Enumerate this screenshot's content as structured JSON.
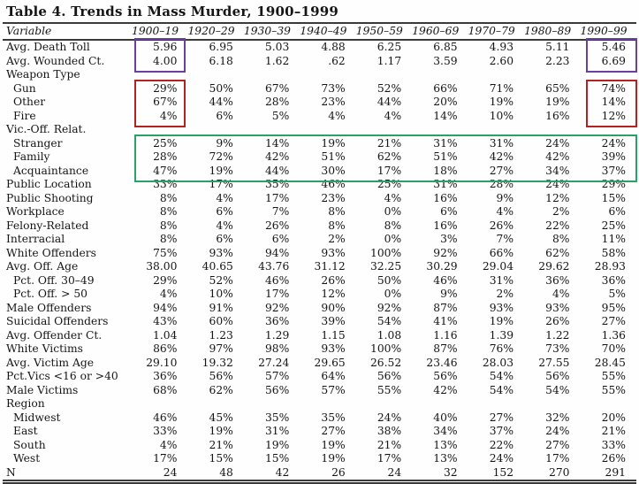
{
  "title": "Table 4. Trends in Mass Murder, 1900–1999",
  "table": {
    "variable_header": "Variable",
    "columns": [
      "1900–19",
      "1920–29",
      "1930–39",
      "1940–49",
      "1950–59",
      "1960–69",
      "1970–79",
      "1980–89",
      "1990–99"
    ],
    "rows": [
      {
        "label": "Avg. Death Toll",
        "indent": 0,
        "values": [
          "5.96",
          "6.95",
          "5.03",
          "4.88",
          "6.25",
          "6.85",
          "4.93",
          "5.11",
          "5.46"
        ]
      },
      {
        "label": "Avg. Wounded Ct.",
        "indent": 0,
        "values": [
          "4.00",
          "6.18",
          "1.62",
          ".62",
          "1.17",
          "3.59",
          "2.60",
          "2.23",
          "6.69"
        ]
      },
      {
        "label": "Weapon Type",
        "indent": 0,
        "group": true,
        "values": []
      },
      {
        "label": "Gun",
        "indent": 1,
        "values": [
          "29%",
          "50%",
          "67%",
          "73%",
          "52%",
          "66%",
          "71%",
          "65%",
          "74%"
        ]
      },
      {
        "label": "Other",
        "indent": 1,
        "values": [
          "67%",
          "44%",
          "28%",
          "23%",
          "44%",
          "20%",
          "19%",
          "19%",
          "14%"
        ]
      },
      {
        "label": "Fire",
        "indent": 1,
        "values": [
          "4%",
          "6%",
          "5%",
          "4%",
          "4%",
          "14%",
          "10%",
          "16%",
          "12%"
        ]
      },
      {
        "label": "Vic.-Off. Relat.",
        "indent": 0,
        "group": true,
        "values": []
      },
      {
        "label": "Stranger",
        "indent": 1,
        "values": [
          "25%",
          "9%",
          "14%",
          "19%",
          "21%",
          "31%",
          "31%",
          "24%",
          "24%"
        ]
      },
      {
        "label": "Family",
        "indent": 1,
        "values": [
          "28%",
          "72%",
          "42%",
          "51%",
          "62%",
          "51%",
          "42%",
          "42%",
          "39%"
        ]
      },
      {
        "label": "Acquaintance",
        "indent": 1,
        "values": [
          "47%",
          "19%",
          "44%",
          "30%",
          "17%",
          "18%",
          "27%",
          "34%",
          "37%"
        ]
      },
      {
        "label": "Public Location",
        "indent": 0,
        "values": [
          "33%",
          "17%",
          "35%",
          "46%",
          "25%",
          "31%",
          "28%",
          "24%",
          "29%"
        ]
      },
      {
        "label": "Public Shooting",
        "indent": 0,
        "values": [
          "8%",
          "4%",
          "17%",
          "23%",
          "4%",
          "16%",
          "9%",
          "12%",
          "15%"
        ]
      },
      {
        "label": "Workplace",
        "indent": 0,
        "values": [
          "8%",
          "6%",
          "7%",
          "8%",
          "0%",
          "6%",
          "4%",
          "2%",
          "6%"
        ]
      },
      {
        "label": "Felony-Related",
        "indent": 0,
        "values": [
          "8%",
          "4%",
          "26%",
          "8%",
          "8%",
          "16%",
          "26%",
          "22%",
          "25%"
        ]
      },
      {
        "label": "Interracial",
        "indent": 0,
        "values": [
          "8%",
          "6%",
          "6%",
          "2%",
          "0%",
          "3%",
          "7%",
          "8%",
          "11%"
        ]
      },
      {
        "label": "White Offenders",
        "indent": 0,
        "values": [
          "75%",
          "93%",
          "94%",
          "93%",
          "100%",
          "92%",
          "66%",
          "62%",
          "58%"
        ]
      },
      {
        "label": "Avg. Off. Age",
        "indent": 0,
        "values": [
          "38.00",
          "40.65",
          "43.76",
          "31.12",
          "32.25",
          "30.29",
          "29.04",
          "29.62",
          "28.93"
        ]
      },
      {
        "label": "Pct. Off. 30–49",
        "indent": 1,
        "values": [
          "29%",
          "52%",
          "46%",
          "26%",
          "50%",
          "46%",
          "31%",
          "36%",
          "36%"
        ]
      },
      {
        "label": "Pct. Off. > 50",
        "indent": 1,
        "values": [
          "4%",
          "10%",
          "17%",
          "12%",
          "0%",
          "9%",
          "2%",
          "4%",
          "5%"
        ]
      },
      {
        "label": "Male Offenders",
        "indent": 0,
        "values": [
          "94%",
          "91%",
          "92%",
          "90%",
          "92%",
          "87%",
          "93%",
          "93%",
          "95%"
        ]
      },
      {
        "label": "Suicidal Offenders",
        "indent": 0,
        "values": [
          "43%",
          "60%",
          "36%",
          "39%",
          "54%",
          "41%",
          "19%",
          "26%",
          "27%"
        ]
      },
      {
        "label": "Avg. Offender Ct.",
        "indent": 0,
        "values": [
          "1.04",
          "1.23",
          "1.29",
          "1.15",
          "1.08",
          "1.16",
          "1.39",
          "1.22",
          "1.36"
        ]
      },
      {
        "label": "White Victims",
        "indent": 0,
        "values": [
          "86%",
          "97%",
          "98%",
          "93%",
          "100%",
          "87%",
          "76%",
          "73%",
          "70%"
        ]
      },
      {
        "label": "Avg. Victim Age",
        "indent": 0,
        "values": [
          "29.10",
          "19.32",
          "27.24",
          "29.65",
          "26.52",
          "23.46",
          "28.03",
          "27.55",
          "28.45"
        ]
      },
      {
        "label": "Pct.Vics <16 or >40",
        "indent": 0,
        "values": [
          "36%",
          "56%",
          "57%",
          "64%",
          "56%",
          "56%",
          "54%",
          "56%",
          "55%"
        ]
      },
      {
        "label": "Male Victims",
        "indent": 0,
        "values": [
          "68%",
          "62%",
          "56%",
          "57%",
          "55%",
          "42%",
          "54%",
          "54%",
          "55%"
        ]
      },
      {
        "label": "Region",
        "indent": 0,
        "group": true,
        "values": []
      },
      {
        "label": "Midwest",
        "indent": 1,
        "values": [
          "46%",
          "45%",
          "35%",
          "35%",
          "24%",
          "40%",
          "27%",
          "32%",
          "20%"
        ]
      },
      {
        "label": "East",
        "indent": 1,
        "values": [
          "33%",
          "19%",
          "31%",
          "27%",
          "38%",
          "34%",
          "37%",
          "24%",
          "21%"
        ]
      },
      {
        "label": "South",
        "indent": 1,
        "values": [
          "4%",
          "21%",
          "19%",
          "19%",
          "21%",
          "13%",
          "22%",
          "27%",
          "33%"
        ]
      },
      {
        "label": "West",
        "indent": 1,
        "values": [
          "17%",
          "15%",
          "15%",
          "19%",
          "17%",
          "13%",
          "24%",
          "17%",
          "26%"
        ]
      },
      {
        "label": "N",
        "indent": 0,
        "last": true,
        "values": [
          "24",
          "48",
          "42",
          "26",
          "24",
          "32",
          "152",
          "270",
          "291"
        ]
      }
    ]
  },
  "annotations": {
    "purple_color": "#6B3FA0",
    "red_color": "#B22222",
    "green_color": "#27A465"
  }
}
